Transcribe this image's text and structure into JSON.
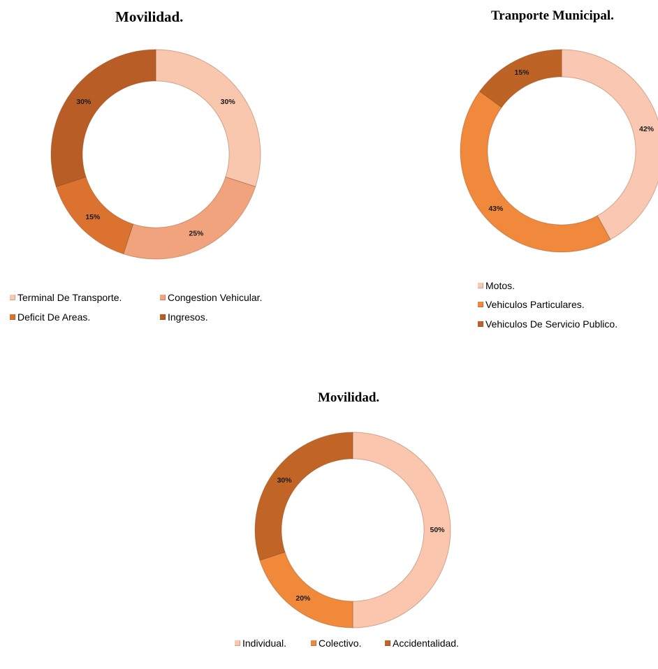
{
  "chart_data": [
    {
      "type": "pie",
      "donut": true,
      "title": "Movilidad.",
      "categories": [
        "Terminal De Transporte.",
        "Congestion Vehicular.",
        "Deficit De Areas.",
        "Ingresos."
      ],
      "values": [
        30,
        25,
        15,
        30
      ],
      "labels": [
        "30%",
        "25%",
        "15%",
        "30%"
      ],
      "colors": [
        "#f9c6ae",
        "#f0a37d",
        "#db7230",
        "#b85d25"
      ],
      "legend": "bottom"
    },
    {
      "type": "pie",
      "donut": true,
      "title": "Tranporte Municipal.",
      "categories": [
        "Motos.",
        "Vehiculos Particulares.",
        "Vehiculos De Servicio Publico."
      ],
      "values": [
        42,
        43,
        15
      ],
      "labels": [
        "42%",
        "43%",
        "15%"
      ],
      "colors": [
        "#fac7b2",
        "#f0893c",
        "#be6326"
      ],
      "legend": "bottom"
    },
    {
      "type": "pie",
      "donut": true,
      "title": "Movilidad.",
      "categories": [
        "Individual.",
        "Colectivo.",
        "Accidentalidad."
      ],
      "values": [
        50,
        20,
        30
      ],
      "labels": [
        "50%",
        "20%",
        "30%"
      ],
      "colors": [
        "#fac6ae",
        "#f0893a",
        "#c06526"
      ],
      "legend": "bottom"
    }
  ]
}
